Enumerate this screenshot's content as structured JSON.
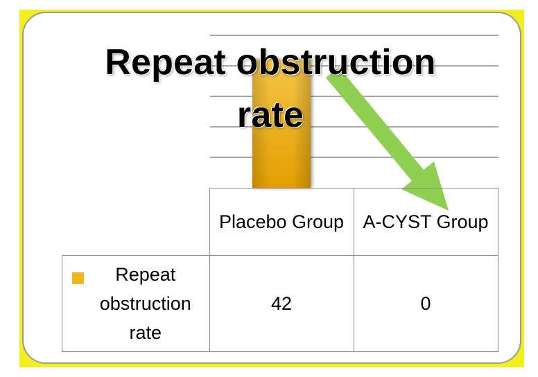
{
  "colors": {
    "bar": "#f1b71a",
    "bar_dark": "#e29e00",
    "arrow": "#8fd052",
    "gridline": "#8c8c8c",
    "border": "#9a9a9a",
    "frame": "#f3ef1c"
  },
  "chart_data": {
    "type": "bar",
    "title": "Repeat obstruction rate",
    "categories": [
      "Placebo Group",
      "A-CYST Group"
    ],
    "series": [
      {
        "name": "Repeat obstruction rate",
        "values": [
          42,
          0
        ]
      }
    ],
    "grid": true,
    "legend": "data-table"
  }
}
